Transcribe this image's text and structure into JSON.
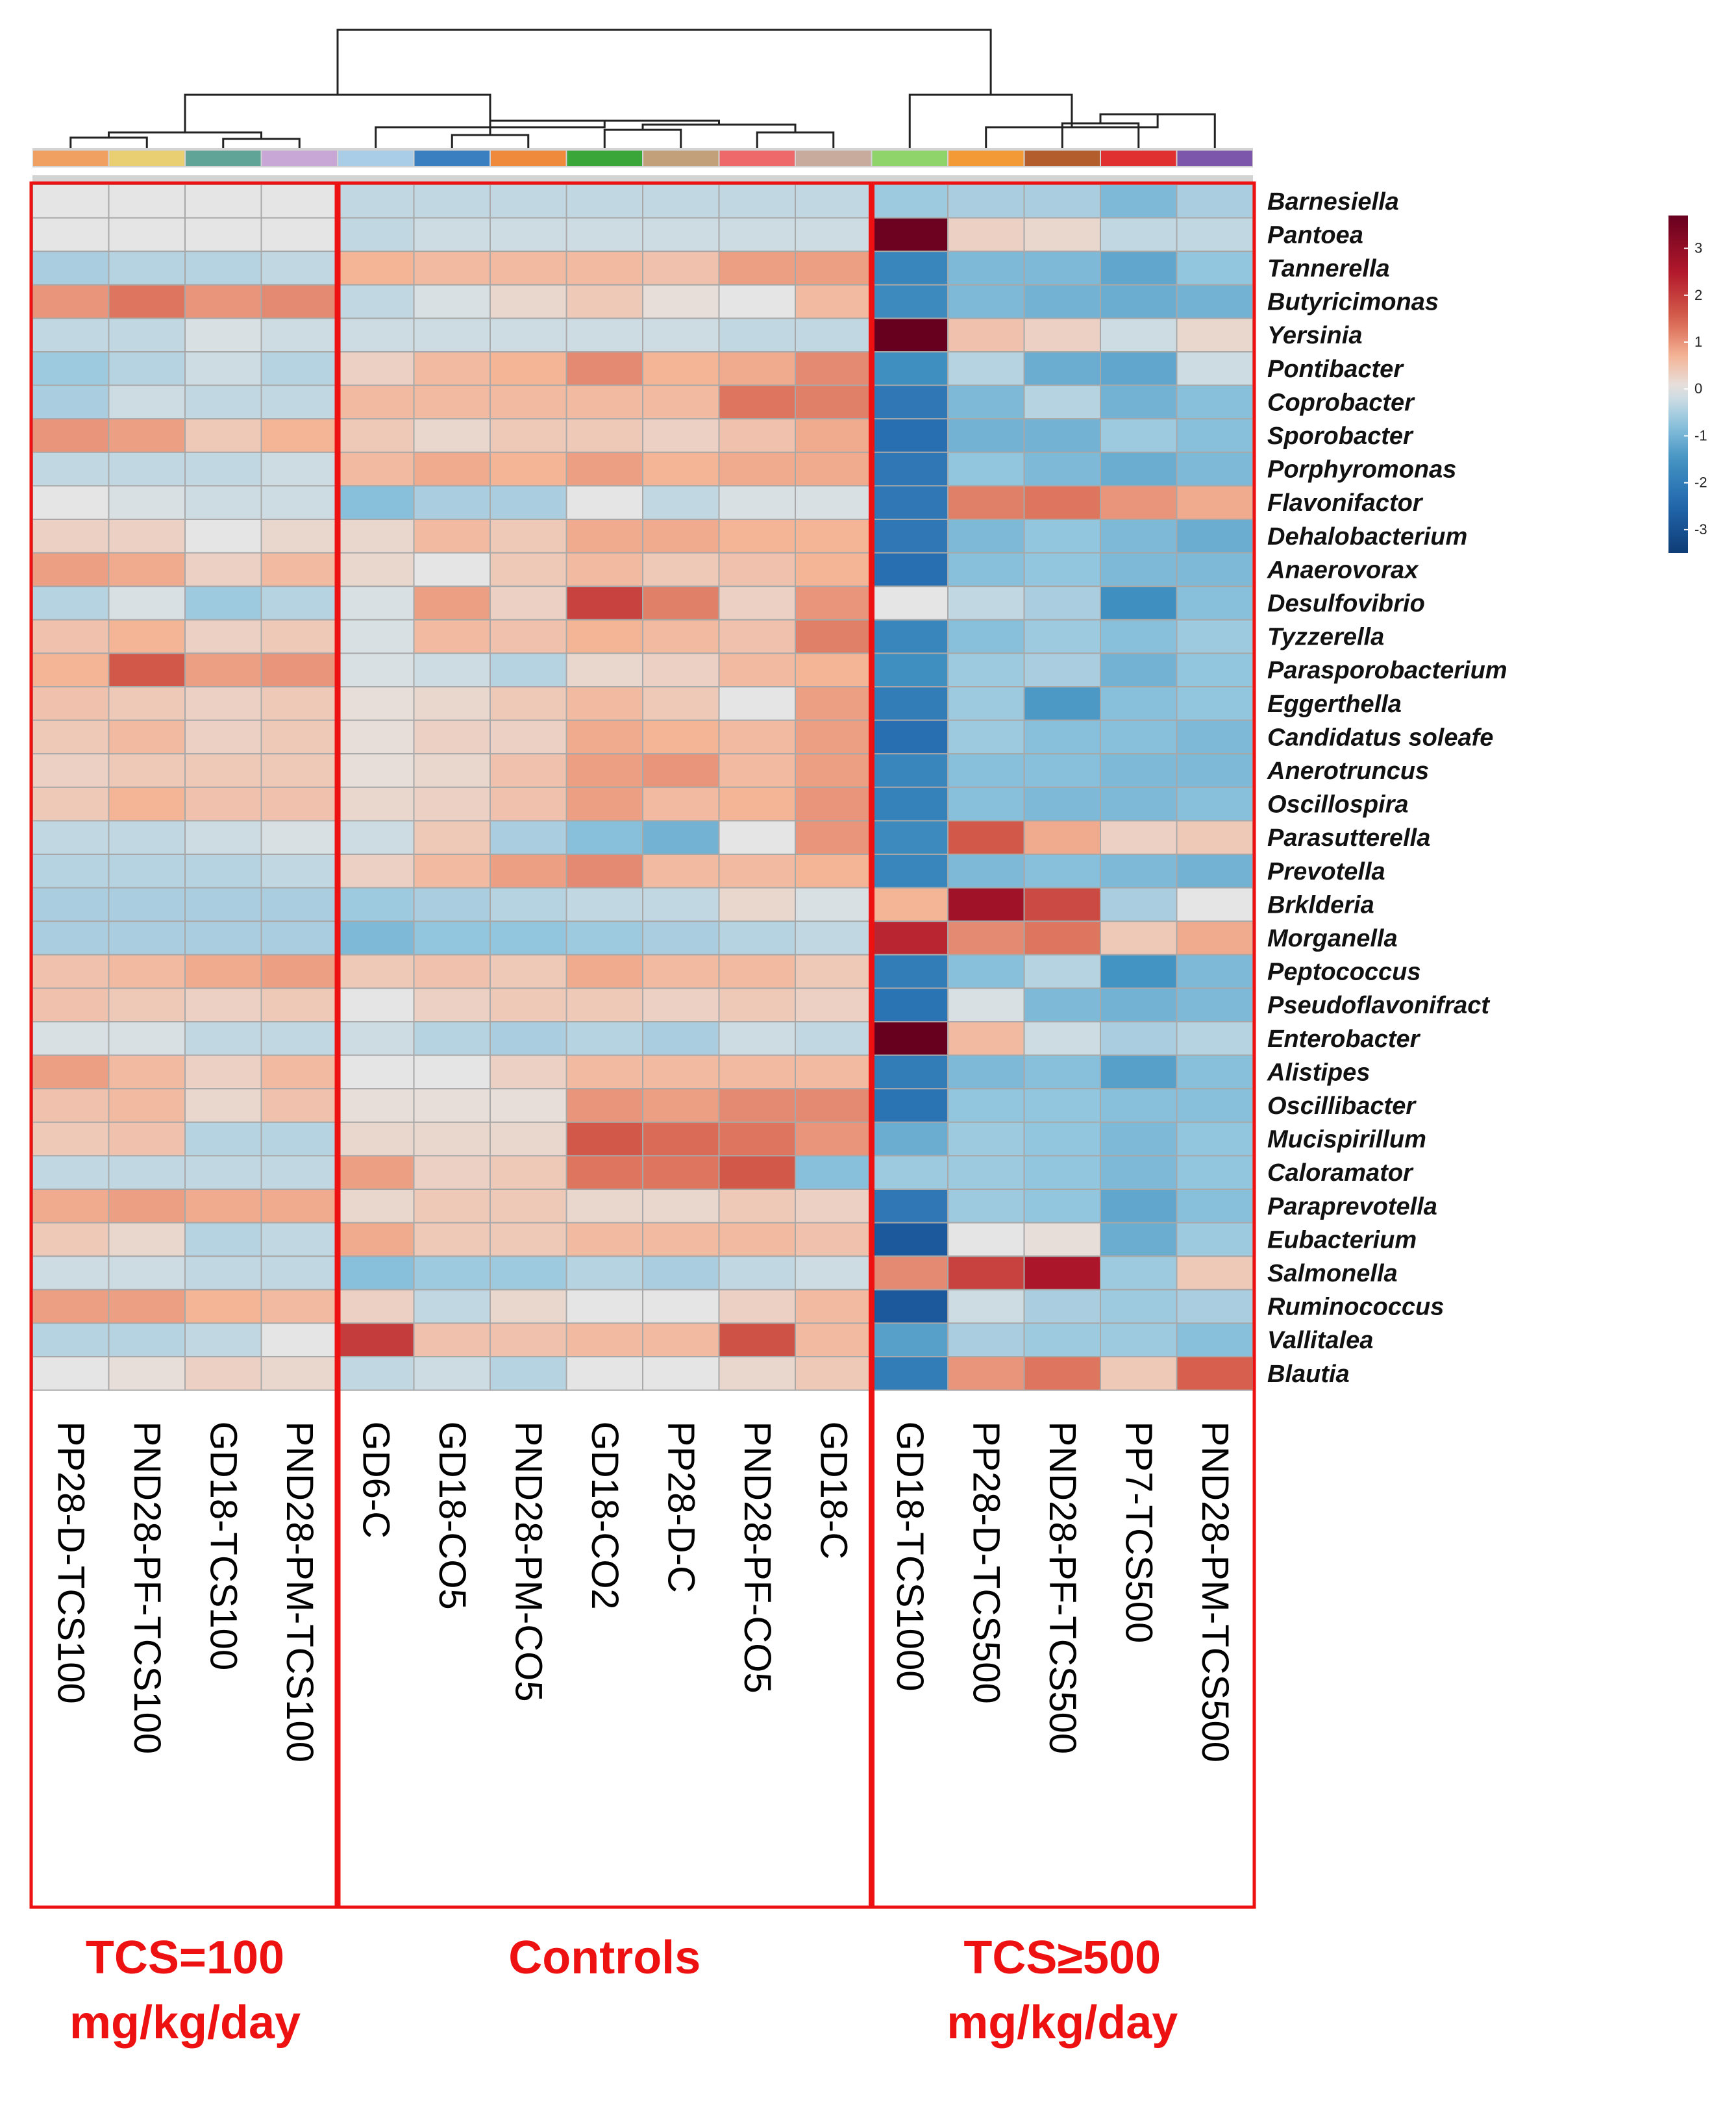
{
  "chart_data": {
    "type": "heatmap",
    "columns": [
      "PP28-D-TCS100",
      "PND28-PF-TCS100",
      "GD18-TCS100",
      "PND28-PM-TCS100",
      "GD6-C",
      "GD18-CO5",
      "PND28-PM-CO5",
      "GD18-CO2",
      "PP28-D-C",
      "PND28-PF-CO5",
      "GD18-C",
      "GD18-TCS1000",
      "PP28-D-TCS500",
      "PND28-PF-TCS500",
      "PP7-TCS500",
      "PND28-PM-TCS500"
    ],
    "column_annotation_colors": [
      "#f0a060",
      "#e9cf72",
      "#5fa496",
      "#c8a6d6",
      "#a9cde6",
      "#3a7fc0",
      "#ef8a3d",
      "#3aa63a",
      "#c2a07a",
      "#ee6a6a",
      "#c8ab9c",
      "#8fd46a",
      "#f39a36",
      "#b35c2c",
      "#e03030",
      "#7c56aa"
    ],
    "rows": [
      "Barnesiella",
      "Pantoea",
      "Tannerella",
      "Butyricimonas",
      "Yersinia",
      "Pontibacter",
      "Coprobacter",
      "Sporobacter",
      "Porphyromonas",
      "Flavonifactor",
      "Dehalobacterium",
      "Anaerovorax",
      "Desulfovibrio",
      "Tyzzerella",
      "Parasporobacterium",
      "Eggerthella",
      "Candidatus soleafe",
      "Anerotruncus",
      "Oscillospira",
      "Parasutterella",
      "Prevotella",
      "Brklderia",
      "Morganella",
      "Peptococcus",
      "Pseudoflavonifract",
      "Enterobacter",
      "Alistipes",
      "Oscillibacter",
      "Mucispirillum",
      "Caloramator",
      "Paraprevotella",
      "Eubacterium",
      "Salmonella",
      "Ruminococcus",
      "Vallitalea",
      "Blautia"
    ],
    "values": [
      [
        0.0,
        0.0,
        0.0,
        0.0,
        -0.3,
        -0.3,
        -0.3,
        -0.3,
        -0.3,
        -0.3,
        -0.3,
        -0.6,
        -0.5,
        -0.5,
        -0.9,
        -0.5
      ],
      [
        0.0,
        0.0,
        0.0,
        0.0,
        -0.3,
        -0.2,
        -0.2,
        -0.2,
        -0.2,
        -0.2,
        -0.2,
        3.6,
        0.3,
        0.2,
        -0.3,
        -0.3
      ],
      [
        -0.5,
        -0.4,
        -0.4,
        -0.3,
        0.7,
        0.6,
        0.6,
        0.6,
        0.5,
        0.9,
        0.9,
        -1.8,
        -0.9,
        -0.9,
        -1.2,
        -0.7
      ],
      [
        1.0,
        1.3,
        1.0,
        1.1,
        -0.3,
        -0.1,
        0.2,
        0.4,
        0.1,
        0.0,
        0.6,
        -1.7,
        -0.9,
        -1.0,
        -1.1,
        -1.0
      ],
      [
        -0.3,
        -0.3,
        -0.1,
        -0.2,
        -0.2,
        -0.2,
        -0.2,
        -0.2,
        -0.2,
        -0.3,
        -0.3,
        3.8,
        0.5,
        0.3,
        -0.2,
        0.2
      ],
      [
        -0.6,
        -0.4,
        -0.2,
        -0.4,
        0.3,
        0.6,
        0.7,
        1.1,
        0.7,
        0.8,
        1.1,
        -1.6,
        -0.4,
        -1.1,
        -1.2,
        -0.2
      ],
      [
        -0.5,
        -0.2,
        -0.3,
        -0.3,
        0.6,
        0.6,
        0.6,
        0.6,
        0.6,
        1.3,
        1.2,
        -2.1,
        -0.9,
        -0.4,
        -1.0,
        -0.8
      ],
      [
        1.0,
        0.9,
        0.4,
        0.7,
        0.4,
        0.2,
        0.4,
        0.4,
        0.3,
        0.5,
        0.8,
        -2.3,
        -1.0,
        -1.0,
        -0.6,
        -0.8
      ],
      [
        -0.3,
        -0.3,
        -0.3,
        -0.2,
        0.6,
        0.8,
        0.7,
        0.9,
        0.7,
        0.8,
        0.8,
        -2.1,
        -0.7,
        -0.9,
        -1.1,
        -0.9
      ],
      [
        0.0,
        -0.1,
        -0.2,
        -0.2,
        -0.8,
        -0.5,
        -0.5,
        0.0,
        -0.3,
        -0.1,
        -0.1,
        -2.1,
        1.2,
        1.3,
        1.0,
        0.8
      ],
      [
        0.3,
        0.3,
        0.0,
        0.2,
        0.2,
        0.6,
        0.4,
        0.8,
        0.8,
        0.7,
        0.7,
        -2.1,
        -0.9,
        -0.7,
        -0.9,
        -1.1
      ],
      [
        0.9,
        0.8,
        0.3,
        0.6,
        0.2,
        0.0,
        0.4,
        0.6,
        0.4,
        0.5,
        0.7,
        -2.3,
        -0.8,
        -0.7,
        -0.9,
        -0.9
      ],
      [
        -0.4,
        -0.1,
        -0.6,
        -0.4,
        -0.1,
        0.9,
        0.3,
        1.9,
        1.2,
        0.3,
        1.0,
        0.0,
        -0.3,
        -0.5,
        -1.6,
        -0.8
      ],
      [
        0.5,
        0.7,
        0.3,
        0.4,
        -0.1,
        0.6,
        0.5,
        0.7,
        0.6,
        0.5,
        1.2,
        -1.8,
        -0.8,
        -0.6,
        -0.8,
        -0.6
      ],
      [
        0.7,
        1.6,
        0.9,
        1.0,
        -0.1,
        -0.2,
        -0.4,
        0.2,
        0.3,
        0.6,
        0.7,
        -1.6,
        -0.6,
        -0.5,
        -1.0,
        -0.7
      ],
      [
        0.5,
        0.4,
        0.3,
        0.4,
        0.1,
        0.2,
        0.4,
        0.6,
        0.4,
        0.0,
        0.9,
        -2.0,
        -0.6,
        -1.4,
        -0.8,
        -0.7
      ],
      [
        0.4,
        0.6,
        0.3,
        0.4,
        0.1,
        0.3,
        0.3,
        0.8,
        0.7,
        0.6,
        0.9,
        -2.3,
        -0.6,
        -0.8,
        -0.8,
        -0.9
      ],
      [
        0.3,
        0.4,
        0.4,
        0.4,
        0.1,
        0.2,
        0.5,
        0.9,
        1.0,
        0.6,
        0.9,
        -1.8,
        -0.8,
        -0.8,
        -0.9,
        -0.9
      ],
      [
        0.4,
        0.7,
        0.5,
        0.5,
        0.2,
        0.3,
        0.5,
        0.9,
        0.6,
        0.7,
        1.0,
        -1.9,
        -0.8,
        -0.9,
        -0.9,
        -0.8
      ],
      [
        -0.3,
        -0.3,
        -0.2,
        -0.1,
        -0.2,
        0.4,
        -0.5,
        -0.8,
        -1.0,
        0.0,
        1.0,
        -1.7,
        1.6,
        0.8,
        0.3,
        0.4
      ],
      [
        -0.4,
        -0.4,
        -0.4,
        -0.3,
        0.3,
        0.6,
        0.9,
        1.1,
        0.6,
        0.6,
        0.7,
        -1.8,
        -0.9,
        -0.8,
        -0.9,
        -1.0
      ],
      [
        -0.5,
        -0.5,
        -0.5,
        -0.5,
        -0.6,
        -0.5,
        -0.4,
        -0.3,
        -0.3,
        0.2,
        -0.1,
        0.7,
        2.8,
        1.8,
        -0.5,
        0.0
      ],
      [
        -0.5,
        -0.5,
        -0.5,
        -0.5,
        -0.9,
        -0.7,
        -0.7,
        -0.6,
        -0.5,
        -0.4,
        -0.3,
        2.3,
        1.1,
        1.3,
        0.4,
        0.8
      ],
      [
        0.5,
        0.6,
        0.8,
        0.9,
        0.4,
        0.5,
        0.4,
        0.8,
        0.6,
        0.6,
        0.4,
        -2.0,
        -0.8,
        -0.4,
        -1.5,
        -0.9
      ],
      [
        0.5,
        0.4,
        0.3,
        0.4,
        0.0,
        0.3,
        0.4,
        0.4,
        0.3,
        0.4,
        0.3,
        -2.2,
        -0.1,
        -0.9,
        -1.0,
        -0.9
      ],
      [
        -0.1,
        -0.1,
        -0.3,
        -0.3,
        -0.2,
        -0.4,
        -0.5,
        -0.4,
        -0.5,
        -0.2,
        -0.3,
        3.8,
        0.6,
        -0.2,
        -0.5,
        -0.4
      ],
      [
        0.9,
        0.6,
        0.3,
        0.6,
        0.0,
        0.0,
        0.3,
        0.6,
        0.6,
        0.6,
        0.6,
        -2.0,
        -0.9,
        -0.8,
        -1.3,
        -0.8
      ],
      [
        0.5,
        0.6,
        0.2,
        0.5,
        0.1,
        0.1,
        0.1,
        1.0,
        0.9,
        1.1,
        1.1,
        -2.2,
        -0.7,
        -0.7,
        -0.8,
        -0.8
      ],
      [
        0.4,
        0.5,
        -0.4,
        -0.4,
        0.2,
        0.2,
        0.2,
        1.6,
        1.4,
        1.3,
        1.0,
        -1.1,
        -0.6,
        -0.7,
        -0.9,
        -0.7
      ],
      [
        -0.3,
        -0.3,
        -0.3,
        -0.3,
        0.9,
        0.3,
        0.4,
        1.3,
        1.3,
        1.6,
        -0.8,
        -0.6,
        -0.6,
        -0.7,
        -0.9,
        -0.7
      ],
      [
        0.8,
        0.9,
        0.8,
        0.8,
        0.2,
        0.4,
        0.4,
        0.2,
        0.2,
        0.4,
        0.3,
        -2.1,
        -0.6,
        -0.7,
        -1.2,
        -0.8
      ],
      [
        0.4,
        0.2,
        -0.4,
        -0.3,
        0.8,
        0.4,
        0.4,
        0.6,
        0.6,
        0.6,
        0.5,
        -2.8,
        0.0,
        0.1,
        -1.1,
        -0.6
      ],
      [
        -0.2,
        -0.2,
        -0.3,
        -0.3,
        -0.8,
        -0.6,
        -0.6,
        -0.4,
        -0.5,
        -0.3,
        -0.2,
        1.1,
        1.9,
        2.6,
        -0.6,
        0.4
      ],
      [
        0.9,
        0.9,
        0.7,
        0.6,
        0.3,
        -0.3,
        0.2,
        0.0,
        0.0,
        0.3,
        0.6,
        -2.8,
        -0.2,
        -0.5,
        -0.6,
        -0.5
      ],
      [
        -0.4,
        -0.4,
        -0.3,
        0.0,
        2.0,
        0.5,
        0.5,
        0.6,
        0.6,
        1.7,
        0.6,
        -1.3,
        -0.5,
        -0.6,
        -0.6,
        -0.8
      ],
      [
        0.0,
        0.1,
        0.3,
        0.2,
        -0.3,
        -0.2,
        -0.4,
        0.0,
        0.0,
        0.2,
        0.4,
        -2.0,
        1.0,
        1.3,
        0.4,
        1.5
      ]
    ],
    "legend": {
      "ticks": [
        3,
        2,
        1,
        0,
        -1,
        -2,
        -3
      ],
      "min": -3.5,
      "max": 3.7,
      "placement": "top-right"
    },
    "colors": {
      "high": "#67001f",
      "mid": "#e5e5e5",
      "low": "#0f3c75",
      "box": "#ee1111",
      "cell_border": "#a8a8a8"
    },
    "groups": [
      {
        "lines": [
          "TCS=100",
          "mg/kg/day"
        ],
        "columns": [
          0,
          3
        ]
      },
      {
        "lines": [
          "Controls"
        ],
        "columns": [
          4,
          10
        ]
      },
      {
        "lines": [
          "TCS≥500",
          "mg/kg/day"
        ],
        "columns": [
          11,
          15
        ]
      }
    ]
  }
}
